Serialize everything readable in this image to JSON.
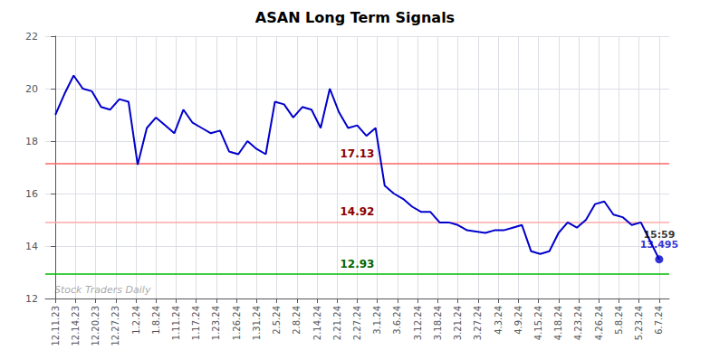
{
  "chart_data": {
    "type": "line",
    "title": "ASAN Long Term Signals",
    "color": "#0000cc",
    "x": [
      0,
      0.454545,
      0.909091,
      1.363636,
      1.818182,
      2.272727,
      2.727273,
      3.181818,
      3.636364,
      4.090909,
      4.545455,
      5,
      5.454545,
      5.909091,
      6.363636,
      6.818182,
      7.272727,
      7.727273,
      8.181818,
      8.636364,
      9.090909,
      9.545455,
      10,
      10.454545,
      10.909091,
      11.363636,
      11.818182,
      12.272727,
      12.727273,
      13.181818,
      13.636364,
      14.090909,
      14.545455,
      15,
      15.454545,
      15.909091,
      16.363636,
      16.818182,
      17.272727,
      17.727273,
      18.181818,
      18.636364,
      19.090909,
      19.545455,
      20,
      20.454545,
      20.909091,
      21.363636,
      21.818182,
      22.272727,
      22.727273,
      23.181818,
      23.636364,
      24.090909,
      24.545455,
      25,
      25.454545,
      25.909091,
      26.363636,
      26.818182,
      27.272727,
      27.727273,
      28.181818,
      28.636364,
      29.090909,
      29.545455,
      30
    ],
    "values": [
      19.0,
      19.8,
      20.5,
      20.0,
      19.9,
      19.3,
      19.2,
      19.6,
      19.5,
      17.1,
      18.5,
      18.9,
      18.6,
      18.3,
      19.2,
      18.7,
      18.5,
      18.3,
      18.4,
      17.6,
      17.5,
      18.0,
      17.7,
      17.5,
      19.5,
      19.4,
      18.9,
      19.3,
      19.2,
      18.5,
      20.0,
      19.1,
      18.5,
      18.6,
      18.2,
      18.5,
      16.3,
      16.0,
      15.8,
      15.5,
      15.3,
      15.3,
      14.9,
      14.9,
      14.8,
      14.6,
      14.55,
      14.5,
      14.6,
      14.6,
      14.7,
      14.8,
      13.8,
      13.7,
      13.8,
      14.5,
      14.9,
      14.7,
      15.0,
      15.6,
      15.7,
      15.2,
      15.1,
      14.8,
      14.9,
      14.2,
      13.495
    ],
    "xlim": [
      -0.5,
      30.5
    ],
    "xticks": [
      {
        "value": 0,
        "label": "12.11.23"
      },
      {
        "value": 1,
        "label": "12.14.23"
      },
      {
        "value": 2,
        "label": "12.20.23"
      },
      {
        "value": 3,
        "label": "12.27.23"
      },
      {
        "value": 4,
        "label": "1.2.24"
      },
      {
        "value": 5,
        "label": "1.8.24"
      },
      {
        "value": 6,
        "label": "1.11.24"
      },
      {
        "value": 7,
        "label": "1.17.24"
      },
      {
        "value": 8,
        "label": "1.23.24"
      },
      {
        "value": 9,
        "label": "1.26.24"
      },
      {
        "value": 10,
        "label": "1.31.24"
      },
      {
        "value": 11,
        "label": "2.5.24"
      },
      {
        "value": 12,
        "label": "2.8.24"
      },
      {
        "value": 13,
        "label": "2.14.24"
      },
      {
        "value": 14,
        "label": "2.21.24"
      },
      {
        "value": 15,
        "label": "2.27.24"
      },
      {
        "value": 16,
        "label": "3.1.24"
      },
      {
        "value": 17,
        "label": "3.6.24"
      },
      {
        "value": 18,
        "label": "3.12.24"
      },
      {
        "value": 19,
        "label": "3.18.24"
      },
      {
        "value": 20,
        "label": "3.21.24"
      },
      {
        "value": 21,
        "label": "3.27.24"
      },
      {
        "value": 22,
        "label": "4.3.24"
      },
      {
        "value": 23,
        "label": "4.9.24"
      },
      {
        "value": 24,
        "label": "4.15.24"
      },
      {
        "value": 25,
        "label": "4.18.24"
      },
      {
        "value": 26,
        "label": "4.23.24"
      },
      {
        "value": 27,
        "label": "4.26.24"
      },
      {
        "value": 28,
        "label": "5.8.24"
      },
      {
        "value": 29,
        "label": "5.23.24"
      },
      {
        "value": 30,
        "label": "6.7.24"
      }
    ],
    "ylim": [
      12,
      22
    ],
    "yticks": [
      12,
      14,
      16,
      18,
      20,
      22
    ],
    "grid": true,
    "hlines": [
      {
        "y": 17.13,
        "label": "17.13",
        "color": "#ff6666",
        "label_color": "#8b0000"
      },
      {
        "y": 14.92,
        "label": "14.92",
        "color": "#ffaaaa",
        "label_color": "#8b0000"
      },
      {
        "y": 12.93,
        "label": "12.93",
        "color": "#00bb00",
        "label_color": "#006600"
      }
    ],
    "last_point": {
      "x": 30,
      "y": 13.495,
      "time_label": "15:59",
      "price_label": "13.495"
    },
    "watermark": "Stock Traders Daily"
  }
}
